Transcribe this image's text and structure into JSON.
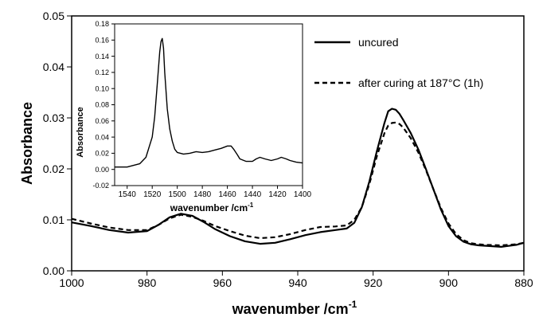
{
  "chart_data": [
    {
      "type": "line",
      "xlabel": "wavenumber /cm",
      "xlabel_sup": "-1",
      "ylabel": "Absorbance",
      "xlim": [
        1000,
        880
      ],
      "ylim": [
        0.0,
        0.05
      ],
      "x_ticks": [
        "1000",
        "980",
        "960",
        "940",
        "920",
        "900",
        "880"
      ],
      "y_ticks": [
        "0.00",
        "0.01",
        "0.02",
        "0.03",
        "0.04",
        "0.05"
      ],
      "x_tick_values": [
        1000,
        980,
        960,
        940,
        920,
        900,
        880
      ],
      "y_tick_values": [
        0.0,
        0.01,
        0.02,
        0.03,
        0.04,
        0.05
      ],
      "grid": false,
      "legend_position": "top-right",
      "series": [
        {
          "name": "uncured",
          "style": "solid",
          "color": "#000000",
          "x": [
            1000,
            995,
            990,
            985,
            980,
            977,
            974,
            971,
            968,
            965,
            962,
            958,
            954,
            950,
            946,
            942,
            938,
            934,
            930,
            927,
            925,
            923,
            921,
            919,
            917,
            916,
            915,
            914,
            913,
            912,
            910,
            908,
            906,
            904,
            902,
            900,
            898,
            896,
            894,
            892,
            890,
            886,
            882,
            880
          ],
          "y": [
            0.0095,
            0.0088,
            0.008,
            0.0075,
            0.0078,
            0.009,
            0.0105,
            0.0112,
            0.0108,
            0.0096,
            0.0082,
            0.0068,
            0.0058,
            0.0053,
            0.0055,
            0.0062,
            0.007,
            0.0076,
            0.008,
            0.0083,
            0.0094,
            0.0125,
            0.0175,
            0.0235,
            0.029,
            0.0313,
            0.0318,
            0.0316,
            0.0308,
            0.0296,
            0.027,
            0.0238,
            0.02,
            0.016,
            0.012,
            0.0088,
            0.0068,
            0.0057,
            0.0052,
            0.005,
            0.0049,
            0.0047,
            0.0051,
            0.0055
          ]
        },
        {
          "name": "after curing at 187°C (1h)",
          "style": "dashed",
          "color": "#000000",
          "x": [
            1000,
            995,
            990,
            985,
            980,
            977,
            974,
            971,
            968,
            965,
            962,
            958,
            954,
            950,
            946,
            942,
            938,
            934,
            930,
            927,
            925,
            923,
            921,
            919,
            917,
            916,
            915,
            914,
            913,
            912,
            910,
            908,
            906,
            904,
            902,
            900,
            898,
            896,
            894,
            892,
            890,
            886,
            882,
            880
          ],
          "y": [
            0.0102,
            0.0093,
            0.0085,
            0.008,
            0.008,
            0.009,
            0.0103,
            0.011,
            0.0106,
            0.0098,
            0.0088,
            0.0078,
            0.0069,
            0.0064,
            0.0066,
            0.0072,
            0.008,
            0.0086,
            0.0087,
            0.0089,
            0.01,
            0.0125,
            0.017,
            0.0225,
            0.027,
            0.0285,
            0.029,
            0.0291,
            0.0288,
            0.0281,
            0.026,
            0.0232,
            0.0198,
            0.016,
            0.0123,
            0.0093,
            0.0072,
            0.006,
            0.0054,
            0.0052,
            0.0051,
            0.005,
            0.0052,
            0.0055
          ]
        }
      ]
    },
    {
      "type": "line",
      "xlabel": "wavenumber /cm",
      "xlabel_sup": "-1",
      "ylabel": "Absorbance",
      "xlim": [
        1550,
        1400
      ],
      "ylim": [
        -0.02,
        0.18
      ],
      "x_ticks": [
        "1540",
        "1520",
        "1500",
        "1480",
        "1460",
        "1440",
        "1420",
        "1400"
      ],
      "y_ticks": [
        "-0.02",
        "0.00",
        "0.02",
        "0.04",
        "0.06",
        "0.08",
        "0.10",
        "0.12",
        "0.14",
        "0.16",
        "0.18"
      ],
      "x_tick_values": [
        1540,
        1520,
        1500,
        1480,
        1460,
        1440,
        1420,
        1400
      ],
      "y_tick_values": [
        -0.02,
        0.0,
        0.02,
        0.04,
        0.06,
        0.08,
        0.1,
        0.12,
        0.14,
        0.16,
        0.18
      ],
      "grid": false,
      "series": [
        {
          "style": "solid",
          "color": "#000000",
          "x": [
            1550,
            1540,
            1530,
            1525,
            1520,
            1518,
            1516,
            1514,
            1513,
            1512,
            1511,
            1510,
            1508,
            1506,
            1504,
            1502,
            1500,
            1495,
            1490,
            1485,
            1480,
            1475,
            1470,
            1465,
            1460,
            1457,
            1455,
            1452,
            1450,
            1445,
            1440,
            1437,
            1434,
            1430,
            1425,
            1420,
            1417,
            1413,
            1410,
            1405,
            1400
          ],
          "y": [
            0.003,
            0.003,
            0.007,
            0.015,
            0.04,
            0.065,
            0.105,
            0.145,
            0.158,
            0.162,
            0.15,
            0.12,
            0.075,
            0.05,
            0.035,
            0.025,
            0.021,
            0.019,
            0.02,
            0.022,
            0.021,
            0.022,
            0.024,
            0.026,
            0.029,
            0.029,
            0.025,
            0.018,
            0.013,
            0.01,
            0.01,
            0.013,
            0.015,
            0.013,
            0.011,
            0.013,
            0.015,
            0.013,
            0.011,
            0.009,
            0.008
          ]
        }
      ]
    }
  ]
}
